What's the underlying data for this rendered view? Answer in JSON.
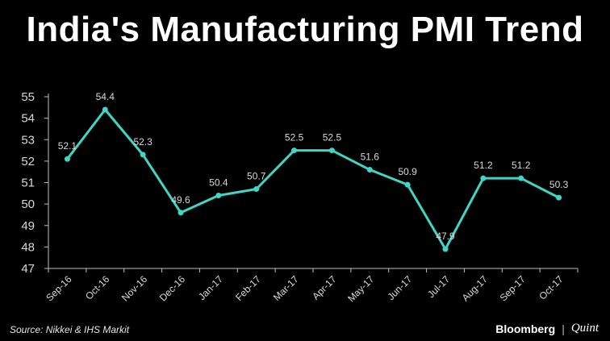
{
  "title": "India's Manufacturing PMI Trend",
  "footer": {
    "source": "Source: Nikkei & IHS Markit",
    "brand_primary": "Bloomberg",
    "brand_separator": "|",
    "brand_secondary": "Quint"
  },
  "colors": {
    "background": "#000000",
    "line": "#3fd6c6",
    "text": "#d9d9d9"
  },
  "chart_data": {
    "type": "line",
    "title": "India's Manufacturing PMI Trend",
    "xlabel": "",
    "ylabel": "",
    "categories": [
      "Sep-16",
      "Oct-16",
      "Nov-16",
      "Dec-16",
      "Jan-17",
      "Feb-17",
      "Mar-17",
      "Apr-17",
      "May-17",
      "Jun-17",
      "Jul-17",
      "Aug-17",
      "Sep-17",
      "Oct-17"
    ],
    "values": [
      52.1,
      54.4,
      52.3,
      49.6,
      50.4,
      50.7,
      52.5,
      52.5,
      51.6,
      50.9,
      47.9,
      51.2,
      51.2,
      50.3
    ],
    "ylim": [
      47,
      55
    ],
    "yticks": [
      47,
      48,
      49,
      50,
      51,
      52,
      53,
      54,
      55
    ],
    "grid": false,
    "data_labels": true,
    "legend": "none"
  }
}
